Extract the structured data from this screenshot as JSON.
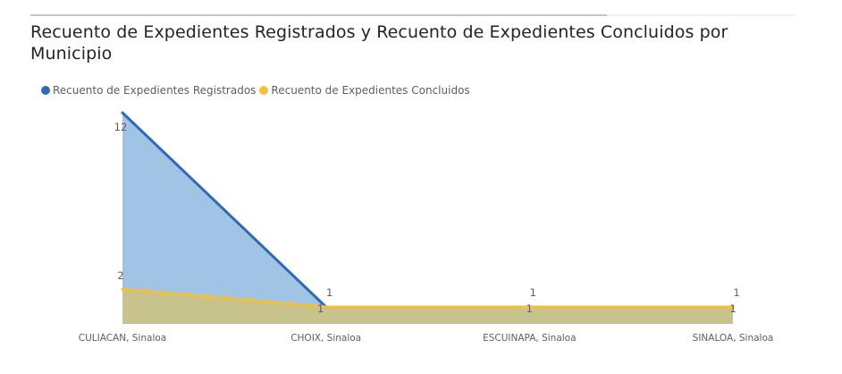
{
  "title": "Recuento de Expedientes Registrados y Recuento de Expedientes Concluidos por Municipio",
  "legend": [
    {
      "label": "Recuento de Expedientes Registrados",
      "color": "#2f6ab6"
    },
    {
      "label": "Recuento de Expedientes Concluidos",
      "color": "#f2c03c"
    }
  ],
  "chart_data": {
    "type": "area",
    "categories": [
      "CULIACAN, Sinaloa",
      "CHOIX, Sinaloa",
      "ESCUINAPA, Sinaloa",
      "SINALOA, Sinaloa"
    ],
    "series": [
      {
        "name": "Recuento de Expedientes Registrados",
        "values": [
          12,
          1,
          1,
          1
        ],
        "line_color": "#2f6ab6",
        "fill_color": "#a1c3e4"
      },
      {
        "name": "Recuento de Expedientes Concluidos",
        "values": [
          2,
          1,
          1,
          1
        ],
        "line_color": "#f2c03c",
        "fill_color": "#c8c28c"
      }
    ],
    "ylim": [
      0,
      12
    ],
    "data_labels": true,
    "legend_position": "top-left",
    "grid": false,
    "xlabel": "",
    "ylabel": ""
  }
}
